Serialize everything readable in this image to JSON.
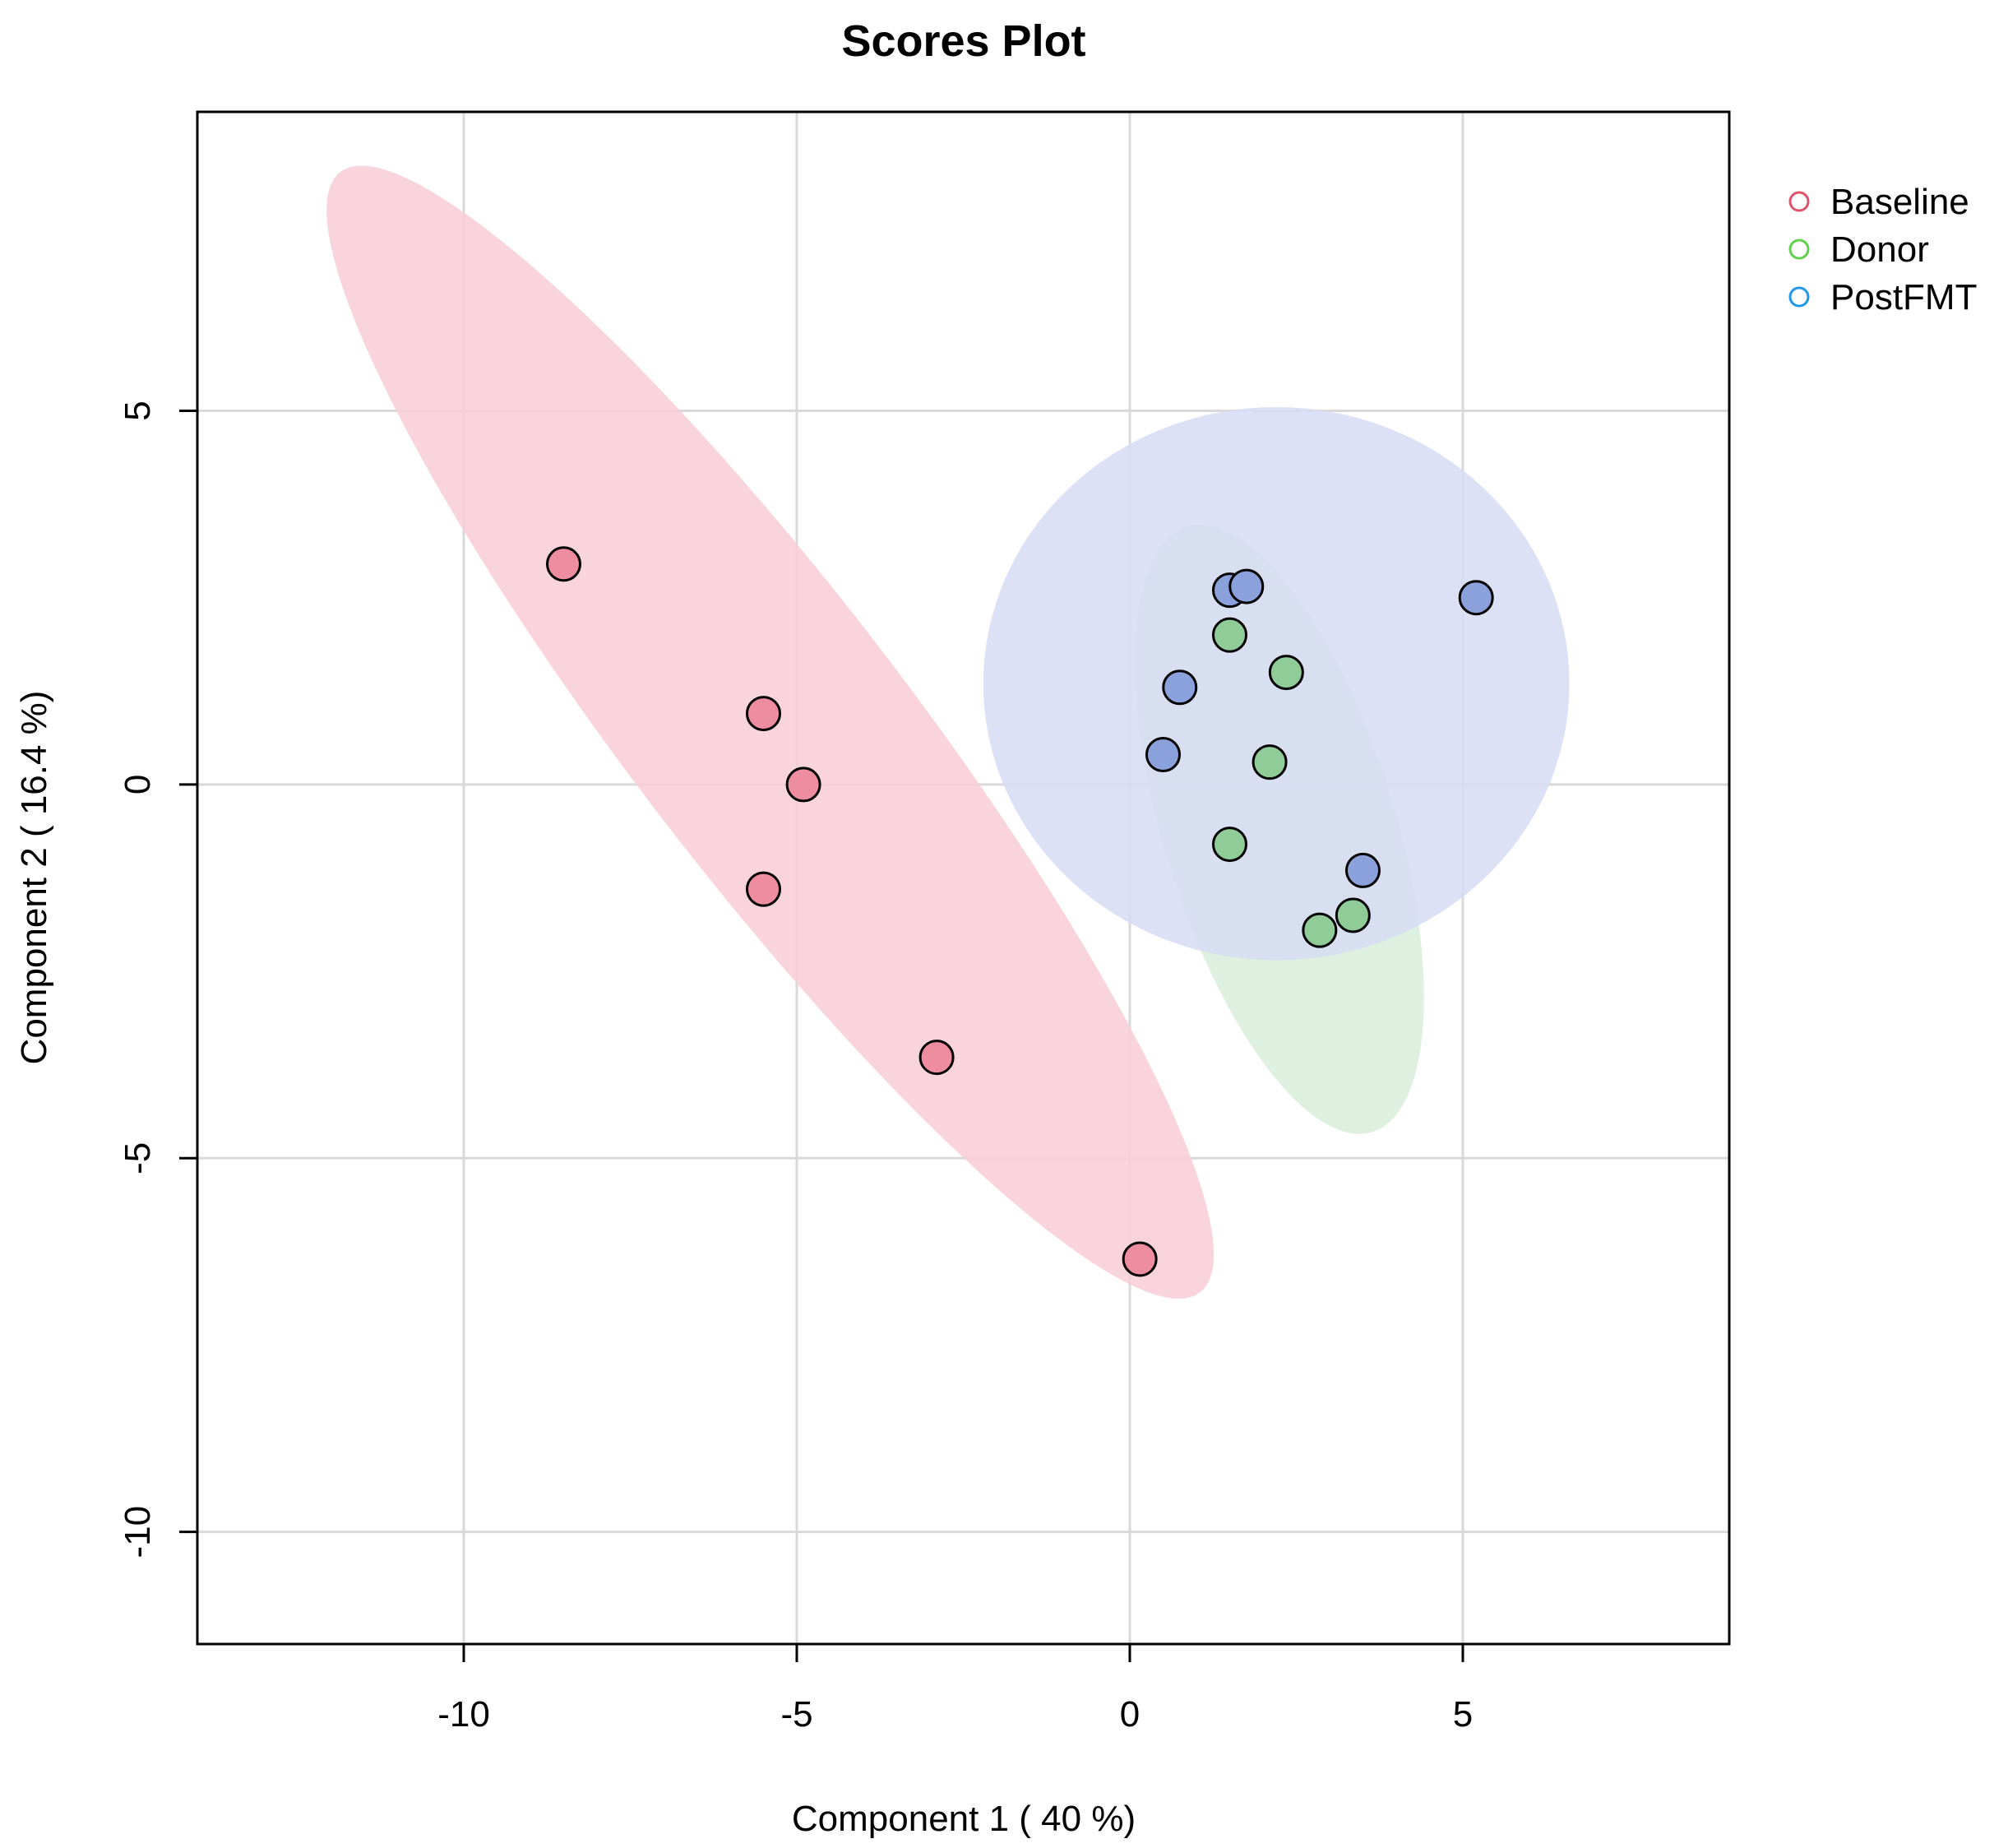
{
  "chart_data": {
    "type": "scatter",
    "title": "Scores Plot",
    "xlabel": "Component 1 ( 40 %)",
    "ylabel": "Component 2 ( 16.4 %)",
    "xlim": [
      -14,
      9
    ],
    "ylim": [
      -11.5,
      9
    ],
    "xticks": [
      -10,
      -5,
      0,
      5
    ],
    "yticks": [
      -10,
      -5,
      0,
      5
    ],
    "xtick_labels": [
      "-10",
      "-5",
      "0",
      "5"
    ],
    "ytick_labels": [
      "-10",
      "-5",
      "0",
      "5"
    ],
    "grid": true,
    "legend_position": "top-right (outside plot)",
    "series": [
      {
        "name": "Baseline",
        "color": "#df536b",
        "fill": "#ee8ca0",
        "ellipse_fill": "#f8ccd6",
        "ellipse": {
          "cx": -5.4,
          "cy": 0.7,
          "rx": 10.6,
          "ry": 1.85,
          "angle_deg": -52.5
        },
        "points": [
          {
            "x": -8.5,
            "y": 2.95
          },
          {
            "x": -5.5,
            "y": 0.95
          },
          {
            "x": -4.9,
            "y": 0.0
          },
          {
            "x": -5.5,
            "y": -1.4
          },
          {
            "x": -2.9,
            "y": -3.65
          },
          {
            "x": 0.15,
            "y": -6.35
          }
        ]
      },
      {
        "name": "Donor",
        "color": "#61d04f",
        "fill": "#8fcc97",
        "ellipse_fill": "#d8edd9",
        "ellipse": {
          "cx": 2.25,
          "cy": -0.6,
          "rx": 4.75,
          "ry": 1.55,
          "angle_deg": -73.0
        },
        "points": [
          {
            "x": 1.5,
            "y": 2.0
          },
          {
            "x": 2.35,
            "y": 1.5
          },
          {
            "x": 2.1,
            "y": 0.3
          },
          {
            "x": 1.5,
            "y": -0.8
          },
          {
            "x": 3.35,
            "y": -1.75
          },
          {
            "x": 2.85,
            "y": -1.95
          }
        ]
      },
      {
        "name": "PostFMT",
        "color": "#2297e6",
        "fill": "#8ba1dc",
        "ellipse_fill": "#d6dcf5",
        "ellipse": {
          "cx": 2.2,
          "cy": 1.35,
          "rx": 4.4,
          "ry": 3.7,
          "angle_deg": 0
        },
        "points": [
          {
            "x": 1.5,
            "y": 2.6
          },
          {
            "x": 1.75,
            "y": 2.65
          },
          {
            "x": 5.2,
            "y": 2.5
          },
          {
            "x": 0.75,
            "y": 1.3
          },
          {
            "x": 0.5,
            "y": 0.4
          },
          {
            "x": 3.5,
            "y": -1.15
          }
        ]
      }
    ]
  }
}
